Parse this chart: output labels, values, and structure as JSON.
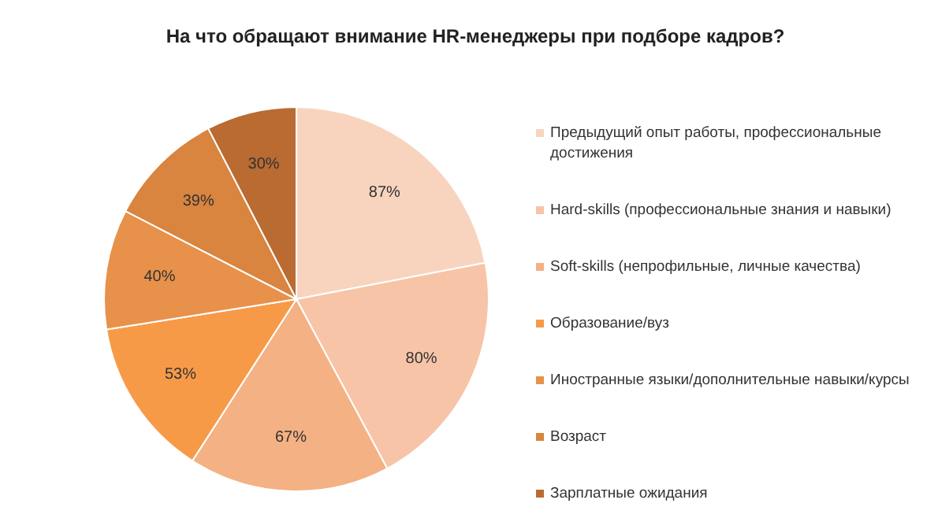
{
  "chart_data": {
    "type": "pie",
    "title": "На что обращают внимание HR-менеджеры при подборе кадров?",
    "categories": [
      "Предыдущий опыт работы, профессиональные достижения",
      "Hard-skills (профессиональные знания и навыки)",
      "Soft-skills (непрофильные, личные качества)",
      "Образование/вуз",
      "Иностранные языки/дополнительные навыки/курсы",
      "Возраст",
      "Зарплатные ожидания"
    ],
    "values": [
      87,
      80,
      67,
      53,
      40,
      39,
      30
    ],
    "colors": [
      "#f8d4bf",
      "#f7c4a7",
      "#f4b183",
      "#f79a48",
      "#e8914b",
      "#d9843f",
      "#b96b31"
    ],
    "value_labels": [
      "87%",
      "80%",
      "67%",
      "53%",
      "40%",
      "39%",
      "30%"
    ],
    "legend": "right"
  }
}
